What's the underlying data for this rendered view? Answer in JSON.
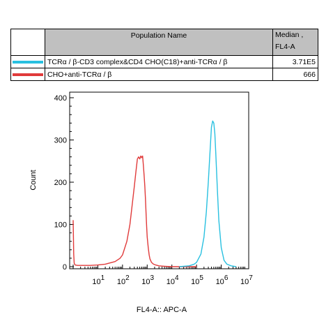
{
  "legend": {
    "header_name": "Population Name",
    "header_median_line1": "Median ,",
    "header_median_line2": "FL4-A",
    "rows": [
      {
        "name": "TCRα / β-CD3 complex&CD4 CHO(C18)+anti-TCRα / β",
        "median": "3.71E5",
        "color": "#28c0e0"
      },
      {
        "name": "CHO+anti-TCRα / β",
        "median": "666",
        "color": "#e03a3a"
      }
    ]
  },
  "chart_data": {
    "type": "line",
    "xlabel": "FL4-A:: APC-A",
    "ylabel": "Count",
    "x_scale": "log",
    "xlim": [
      1,
      10000000
    ],
    "ylim": [
      0,
      410
    ],
    "x_ticks": [
      {
        "base": "10",
        "exp": "1"
      },
      {
        "base": "10",
        "exp": "2"
      },
      {
        "base": "10",
        "exp": "3"
      },
      {
        "base": "10",
        "exp": "4"
      },
      {
        "base": "10",
        "exp": "5"
      },
      {
        "base": "10",
        "exp": "6"
      },
      {
        "base": "10",
        "exp": "7"
      }
    ],
    "y_ticks": [
      "0",
      "100",
      "200",
      "300",
      "400"
    ],
    "series": [
      {
        "color": "#e03a3a",
        "x": [
          1,
          1.05,
          1.1,
          1.2,
          1.5,
          2,
          5,
          10,
          20,
          50,
          80,
          100,
          150,
          200,
          250,
          300,
          350,
          400,
          450,
          500,
          550,
          600,
          650,
          700,
          750,
          800,
          850,
          900,
          950,
          1000,
          1100,
          1200,
          1300,
          1500,
          1800,
          2200,
          3000,
          5000,
          10000,
          20000,
          100000
        ],
        "y": [
          110,
          30,
          8,
          4,
          3,
          3,
          3,
          4,
          6,
          12,
          20,
          28,
          60,
          100,
          150,
          190,
          225,
          255,
          260,
          255,
          262,
          258,
          262,
          240,
          215,
          190,
          160,
          125,
          95,
          70,
          45,
          28,
          18,
          10,
          6,
          4,
          2,
          1,
          0,
          0,
          0
        ]
      },
      {
        "color": "#28c0e0",
        "x": [
          20000,
          50000,
          80000,
          100000,
          150000,
          200000,
          250000,
          300000,
          350000,
          400000,
          450000,
          500000,
          550000,
          600000,
          700000,
          800000,
          1000000,
          1300000,
          1700000,
          2500000,
          4000000
        ],
        "y": [
          0,
          2,
          6,
          10,
          30,
          70,
          130,
          200,
          270,
          330,
          345,
          340,
          315,
          270,
          180,
          110,
          45,
          15,
          6,
          2,
          0
        ]
      }
    ]
  }
}
